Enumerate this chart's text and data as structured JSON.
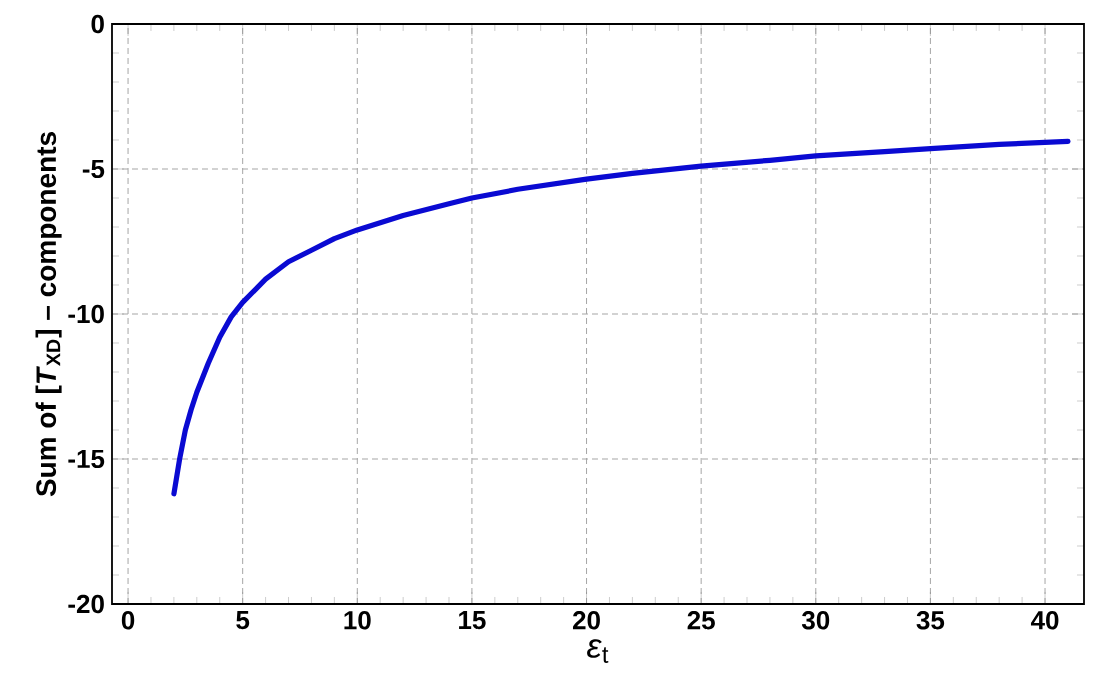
{
  "chart_data": {
    "type": "line",
    "xlabel": "*ε*$_{t}$",
    "ylabel": "Sum of [*T*$_{XD}$] – components",
    "xlim": [
      -0.7,
      41.7
    ],
    "ylim": [
      -20,
      0
    ],
    "xticks": [
      0,
      5,
      10,
      15,
      20,
      25,
      30,
      35,
      40
    ],
    "yticks": [
      -20,
      -15,
      -10,
      -5,
      0
    ],
    "grid": true,
    "line_style": "solid",
    "marker": "none",
    "series": [
      {
        "color": "#0a0ad2",
        "x": [
          2,
          2.25,
          2.5,
          2.75,
          3,
          3.5,
          4,
          4.5,
          5,
          6,
          7,
          8,
          9,
          10,
          12,
          14,
          15,
          17,
          20,
          22,
          25,
          28,
          30,
          33,
          35,
          38,
          41
        ],
        "values": [
          -16.2,
          -15.0,
          -14.0,
          -13.3,
          -12.7,
          -11.7,
          -10.8,
          -10.1,
          -9.6,
          -8.8,
          -8.2,
          -7.8,
          -7.4,
          -7.1,
          -6.6,
          -6.2,
          -6.0,
          -5.7,
          -5.35,
          -5.15,
          -4.9,
          -4.7,
          -4.55,
          -4.4,
          -4.3,
          -4.15,
          -4.05
        ]
      }
    ]
  }
}
